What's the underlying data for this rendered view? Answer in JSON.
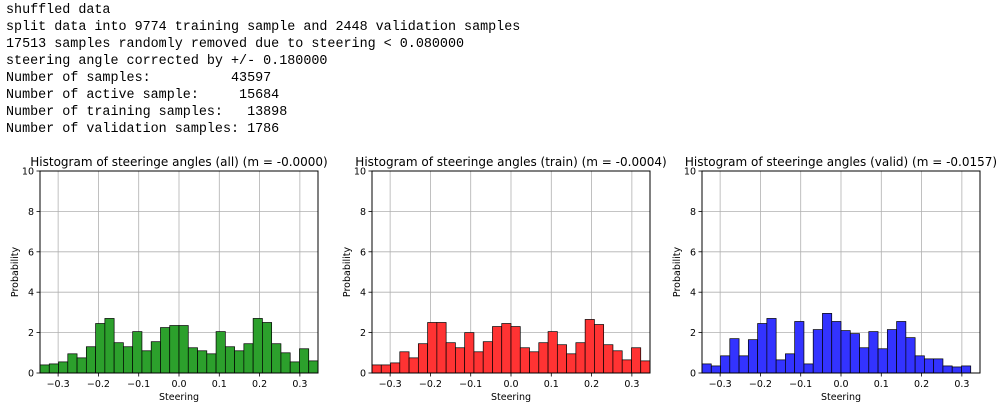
{
  "log": {
    "lines": [
      "shuffled data",
      "split data into 9774 training sample and 2448 validation samples",
      "17513 samples randomly removed due to steering < 0.080000",
      "steering angle corrected by +/- 0.180000",
      "Number of samples:          43597",
      "Number of active sample:     15684",
      "Number of training samples:   13898",
      "Number of validation samples: 1786"
    ]
  },
  "chart_data": [
    {
      "type": "bar",
      "title": "Histogram of steeringe angles (all) (m = -0.0000)",
      "xlabel": "Steering",
      "ylabel": "Probability",
      "color": "#2ca02c",
      "xlim": [
        -0.345,
        0.345
      ],
      "ylim": [
        0,
        10
      ],
      "xticks": [
        -0.3,
        -0.2,
        -0.1,
        0.0,
        0.1,
        0.2,
        0.3
      ],
      "xtick_labels": [
        "−0.3",
        "−0.2",
        "−0.1",
        "0.0",
        "0.1",
        "0.2",
        "0.3"
      ],
      "yticks": [
        0,
        2,
        4,
        6,
        8,
        10
      ],
      "grid": true,
      "bin_edges_start": -0.345,
      "bin_width": 0.023,
      "values": [
        0.4,
        0.45,
        0.55,
        0.95,
        0.75,
        1.3,
        2.45,
        2.7,
        1.5,
        1.3,
        2.05,
        1.1,
        1.55,
        2.25,
        2.35,
        2.35,
        1.25,
        1.1,
        0.95,
        2.05,
        1.3,
        1.1,
        1.45,
        2.7,
        2.5,
        1.45,
        1.0,
        0.55,
        1.2,
        0.6,
        0.45,
        0.4
      ]
    },
    {
      "type": "bar",
      "title": "Histogram of steeringe angles (train) (m = -0.0004)",
      "xlabel": "Steering",
      "ylabel": "Probability",
      "color": "#ff3333",
      "xlim": [
        -0.345,
        0.345
      ],
      "ylim": [
        0,
        10
      ],
      "xticks": [
        -0.3,
        -0.2,
        -0.1,
        0.0,
        0.1,
        0.2,
        0.3
      ],
      "xtick_labels": [
        "−0.3",
        "−0.2",
        "−0.1",
        "0.0",
        "0.1",
        "0.2",
        "0.3"
      ],
      "yticks": [
        0,
        2,
        4,
        6,
        8,
        10
      ],
      "grid": true,
      "bin_edges_start": -0.345,
      "bin_width": 0.023,
      "values": [
        0.4,
        0.4,
        0.5,
        1.05,
        0.75,
        1.45,
        2.5,
        2.5,
        1.5,
        1.25,
        2.0,
        1.05,
        1.55,
        2.3,
        2.45,
        2.3,
        1.25,
        1.05,
        1.5,
        2.05,
        1.4,
        0.95,
        1.5,
        2.65,
        2.4,
        1.4,
        1.1,
        0.65,
        1.25,
        0.6,
        0.45,
        0.4
      ]
    },
    {
      "type": "bar",
      "title": "Histogram of steeringe angles (valid) (m = -0.0157)",
      "xlabel": "Steering",
      "ylabel": "Probability",
      "color": "#3333ff",
      "xlim": [
        -0.345,
        0.345
      ],
      "ylim": [
        0,
        10
      ],
      "xticks": [
        -0.3,
        -0.2,
        -0.1,
        0.0,
        0.1,
        0.2,
        0.3
      ],
      "xtick_labels": [
        "−0.3",
        "−0.2",
        "−0.1",
        "0.0",
        "0.1",
        "0.2",
        "0.3"
      ],
      "yticks": [
        0,
        2,
        4,
        6,
        8,
        10
      ],
      "grid": true,
      "bin_edges_start": -0.345,
      "bin_width": 0.023,
      "values": [
        0.45,
        0.35,
        0.85,
        1.7,
        0.85,
        1.65,
        2.45,
        2.7,
        0.65,
        0.95,
        2.55,
        0.45,
        2.15,
        2.95,
        2.55,
        2.1,
        1.95,
        1.25,
        2.05,
        1.2,
        2.15,
        2.55,
        1.75,
        0.85,
        0.7,
        0.7,
        0.35,
        0.3,
        0.35,
        0.0,
        0.0,
        0.0
      ]
    }
  ]
}
